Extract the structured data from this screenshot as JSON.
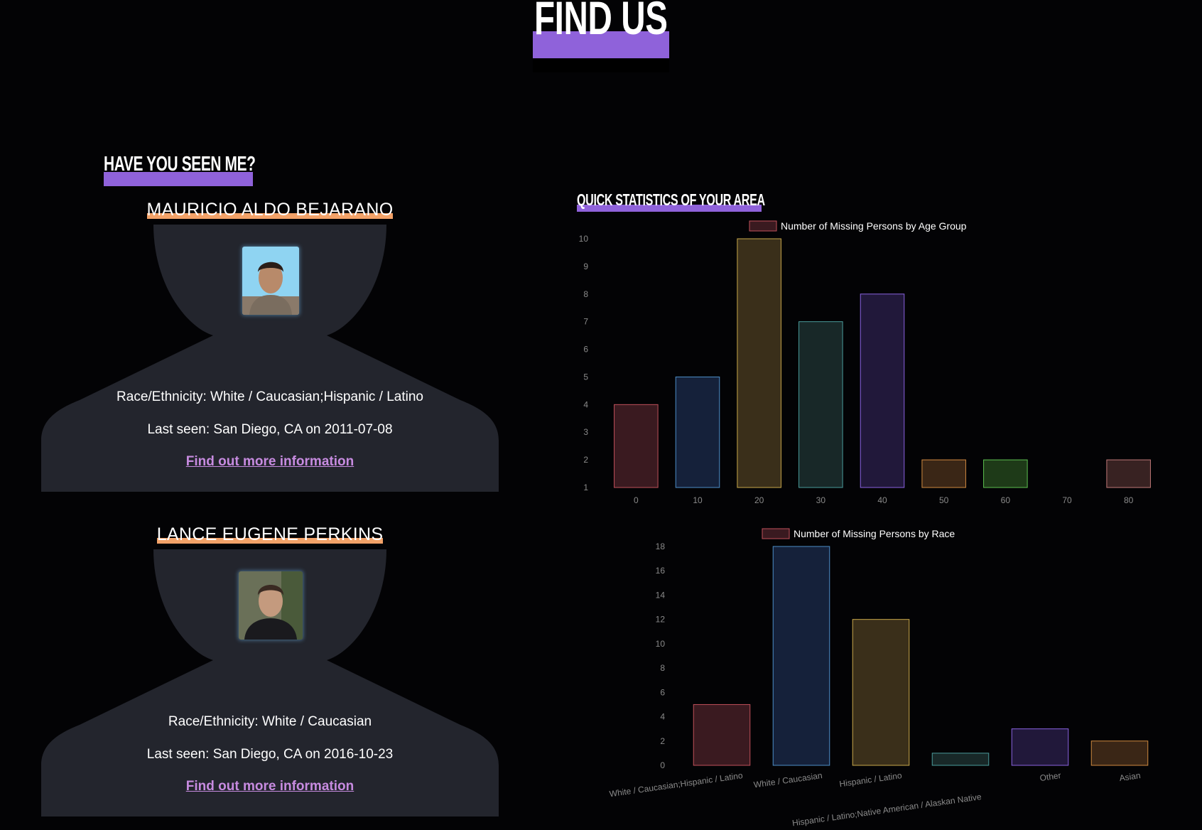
{
  "page": {
    "title": "FIND US"
  },
  "sections": {
    "seen_heading": "HAVE YOU SEEN ME?",
    "stats_heading": "QUICK STATISTICS OF YOUR AREA"
  },
  "persons": [
    {
      "name": "MAURICIO ALDO BEJARANO",
      "race": "Race/Ethnicity: White / Caucasian;Hispanic / Latino",
      "last_seen": "Last seen: San Diego, CA on 2011-07-08",
      "link": "Find out more information",
      "photo_icon": "person-photo"
    },
    {
      "name": "LANCE EUGENE PERKINS",
      "race": "Race/Ethnicity: White / Caucasian",
      "last_seen": "Last seen: San Diego, CA on 2016-10-23",
      "link": "Find out more information",
      "photo_icon": "person-photo"
    }
  ],
  "chart_data": [
    {
      "type": "bar",
      "legend": "Number of Missing Persons by Age Group",
      "categories": [
        "0",
        "10",
        "20",
        "30",
        "40",
        "50",
        "60",
        "70",
        "80"
      ],
      "values": [
        4,
        5,
        10,
        7,
        8,
        2,
        2,
        1,
        2
      ],
      "yticks": [
        1,
        2,
        3,
        4,
        5,
        6,
        7,
        8,
        9,
        10
      ],
      "ylim": [
        1,
        10
      ],
      "grid": false,
      "legend_position": "top",
      "colors": {
        "fill": [
          "#3a1a20",
          "#15213a",
          "#3a2f1a",
          "#182828",
          "#21183a",
          "#3a2616",
          "#1e3a18",
          "#1c1c1c",
          "#382222"
        ],
        "stroke": [
          "#c0505a",
          "#4d8ec8",
          "#c8a84a",
          "#4a9c9c",
          "#8a62e0",
          "#d08a40",
          "#5cc050",
          "#777777",
          "#c07878"
        ]
      }
    },
    {
      "type": "bar",
      "legend": "Number of Missing Persons by Race",
      "categories": [
        "White / Caucasian;Hispanic / Latino",
        "White / Caucasian",
        "Hispanic / Latino",
        "Hispanic / Latino;Native American / Alaskan Native",
        "Other",
        "Asian"
      ],
      "values": [
        5,
        18,
        12,
        1,
        3,
        2
      ],
      "yticks": [
        0,
        2,
        4,
        6,
        8,
        10,
        12,
        14,
        16,
        18
      ],
      "ylim": [
        0,
        18
      ],
      "grid": false,
      "legend_position": "top",
      "colors": {
        "fill": [
          "#3a1a20",
          "#15213a",
          "#3a2f1a",
          "#182828",
          "#21183a",
          "#3a2616"
        ],
        "stroke": [
          "#c0505a",
          "#4d8ec8",
          "#c8a84a",
          "#4a9c9c",
          "#8a62e0",
          "#d08a40"
        ]
      }
    }
  ]
}
